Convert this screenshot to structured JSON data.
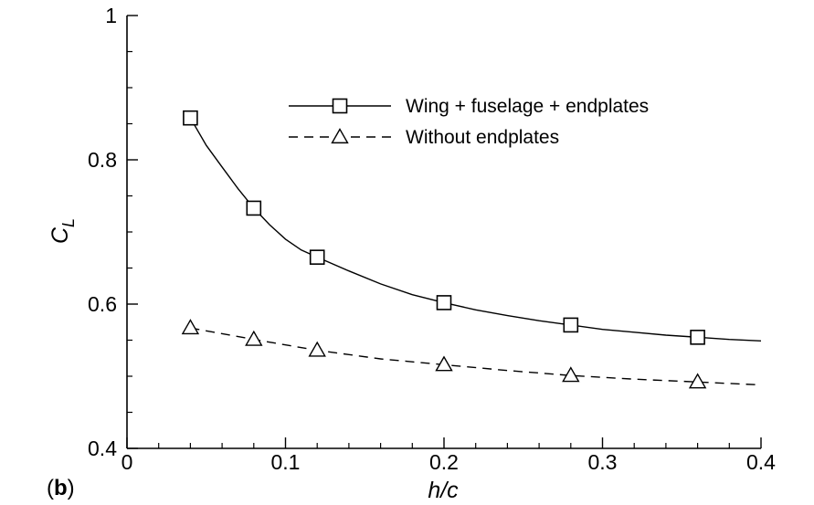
{
  "panel": {
    "label": "(b)",
    "letter": "b"
  },
  "chart_data": {
    "type": "line",
    "xlabel": "h/c",
    "ylabel": "C_L",
    "xlim": [
      0,
      0.4
    ],
    "ylim": [
      0.4,
      1.0
    ],
    "xticks": [
      0,
      0.1,
      0.2,
      0.3,
      0.4
    ],
    "xtick_labels": [
      "0",
      "0.1",
      "0.2",
      "0.3",
      "0.4"
    ],
    "yticks": [
      0.4,
      0.6,
      0.8,
      1.0
    ],
    "ytick_labels": [
      "0.4",
      "0.6",
      "0.8",
      "1"
    ],
    "grid": false,
    "legend_position": "top-right",
    "series": [
      {
        "name": "Wing + fuselage + endplates",
        "line": "solid",
        "marker": "square",
        "x": [
          0.04,
          0.08,
          0.12,
          0.2,
          0.28,
          0.36
        ],
        "y": [
          0.858,
          0.733,
          0.665,
          0.602,
          0.571,
          0.554
        ],
        "curve_x": [
          0.04,
          0.05,
          0.06,
          0.07,
          0.08,
          0.09,
          0.1,
          0.11,
          0.12,
          0.14,
          0.16,
          0.18,
          0.2,
          0.22,
          0.24,
          0.26,
          0.28,
          0.3,
          0.32,
          0.34,
          0.36,
          0.38,
          0.4
        ],
        "curve_y": [
          0.858,
          0.82,
          0.79,
          0.76,
          0.733,
          0.71,
          0.69,
          0.675,
          0.665,
          0.646,
          0.628,
          0.613,
          0.602,
          0.592,
          0.584,
          0.577,
          0.571,
          0.565,
          0.561,
          0.557,
          0.554,
          0.551,
          0.549
        ]
      },
      {
        "name": "Without endplates",
        "line": "dashed",
        "marker": "triangle",
        "x": [
          0.04,
          0.08,
          0.12,
          0.2,
          0.28,
          0.36
        ],
        "y": [
          0.567,
          0.551,
          0.536,
          0.516,
          0.501,
          0.492
        ],
        "curve_x": [
          0.04,
          0.08,
          0.12,
          0.16,
          0.2,
          0.24,
          0.28,
          0.32,
          0.36,
          0.4
        ],
        "curve_y": [
          0.567,
          0.551,
          0.536,
          0.524,
          0.516,
          0.508,
          0.501,
          0.496,
          0.492,
          0.488
        ]
      }
    ]
  }
}
